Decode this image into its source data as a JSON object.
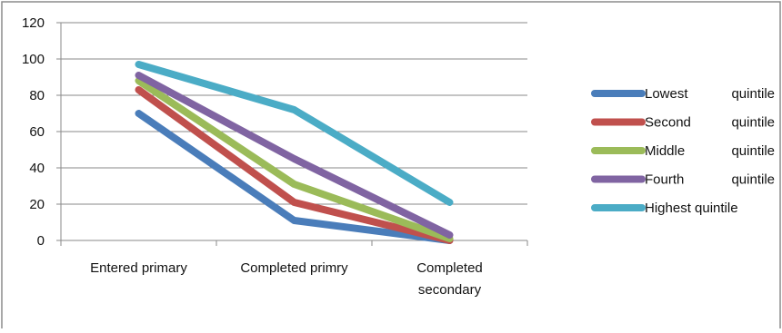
{
  "chart_data": {
    "type": "line",
    "title": "",
    "xlabel": "",
    "ylabel": "",
    "categories": [
      [
        "Entered primary"
      ],
      [
        "Completed primry"
      ],
      [
        "Completed",
        "secondary"
      ]
    ],
    "ylim": [
      0,
      120
    ],
    "yticks": [
      0,
      20,
      40,
      60,
      80,
      100,
      120
    ],
    "grid": true,
    "legend_position": "right",
    "series": [
      {
        "name": "Lowest quintile",
        "legend_words": [
          "Lowest",
          "quintile"
        ],
        "color": "#4a7dba",
        "values": [
          70,
          11,
          0
        ]
      },
      {
        "name": "Second quintile",
        "legend_words": [
          "Second",
          "quintile"
        ],
        "color": "#c0504d",
        "values": [
          83,
          21,
          0
        ]
      },
      {
        "name": "Middle quintile",
        "legend_words": [
          "Middle",
          "quintile"
        ],
        "color": "#9bbb59",
        "values": [
          88,
          31,
          1
        ]
      },
      {
        "name": "Fourth quintile",
        "legend_words": [
          "Fourth",
          "quintile"
        ],
        "color": "#8064a2",
        "values": [
          91,
          45,
          3
        ]
      },
      {
        "name": "Highest quintile",
        "legend_words": [
          "Highest quintile"
        ],
        "color": "#4bacc6",
        "values": [
          97,
          72,
          21
        ]
      }
    ]
  }
}
